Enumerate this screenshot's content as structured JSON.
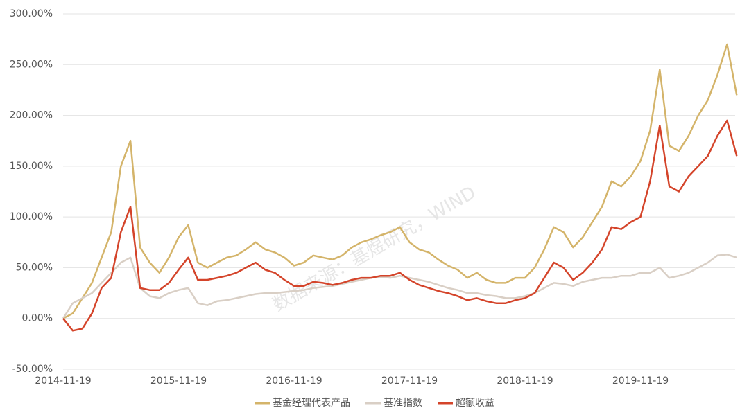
{
  "chart_data": {
    "type": "line",
    "watermark": "数据来源：基煜研究，WIND",
    "categories": [
      "2014-11-19",
      null,
      null,
      null,
      null,
      null,
      null,
      null,
      null,
      null,
      null,
      null,
      "2015-11-19",
      null,
      null,
      null,
      null,
      null,
      null,
      null,
      null,
      null,
      null,
      null,
      "2016-11-19",
      null,
      null,
      null,
      null,
      null,
      null,
      null,
      null,
      null,
      null,
      null,
      "2017-11-19",
      null,
      null,
      null,
      null,
      null,
      null,
      null,
      null,
      null,
      null,
      null,
      "2018-11-19",
      null,
      null,
      null,
      null,
      null,
      null,
      null,
      null,
      null,
      null,
      null,
      "2019-11-19",
      null,
      null,
      null,
      null,
      null,
      null,
      null,
      null,
      null,
      null
    ],
    "series": [
      {
        "name": "基金经理代表产品",
        "color": "#d4b46a",
        "values": [
          0,
          5,
          20,
          35,
          60,
          85,
          150,
          175,
          70,
          55,
          45,
          60,
          80,
          92,
          55,
          50,
          55,
          60,
          62,
          68,
          75,
          68,
          65,
          60,
          52,
          55,
          62,
          60,
          58,
          62,
          70,
          75,
          78,
          82,
          85,
          90,
          75,
          68,
          65,
          58,
          52,
          48,
          40,
          45,
          38,
          35,
          35,
          40,
          40,
          50,
          68,
          90,
          85,
          70,
          80,
          95,
          110,
          135,
          130,
          140,
          155,
          185,
          245,
          170,
          165,
          180,
          200,
          215,
          240,
          270,
          220
        ]
      },
      {
        "name": "基准指数",
        "color": "#d9cfc5",
        "values": [
          0,
          15,
          20,
          25,
          35,
          45,
          55,
          60,
          30,
          22,
          20,
          25,
          28,
          30,
          15,
          13,
          17,
          18,
          20,
          22,
          24,
          25,
          25,
          26,
          27,
          28,
          30,
          31,
          32,
          34,
          36,
          38,
          40,
          41,
          40,
          42,
          40,
          38,
          36,
          33,
          30,
          28,
          25,
          25,
          23,
          22,
          20,
          20,
          22,
          25,
          30,
          35,
          34,
          32,
          36,
          38,
          40,
          40,
          42,
          42,
          45,
          45,
          50,
          40,
          42,
          45,
          50,
          55,
          62,
          63,
          60
        ]
      },
      {
        "name": "超额收益",
        "color": "#d4442a",
        "values": [
          0,
          -12,
          -10,
          5,
          30,
          40,
          85,
          110,
          30,
          28,
          28,
          35,
          48,
          60,
          38,
          38,
          40,
          42,
          45,
          50,
          55,
          48,
          45,
          38,
          32,
          32,
          36,
          35,
          33,
          35,
          38,
          40,
          40,
          42,
          42,
          45,
          38,
          33,
          30,
          27,
          25,
          22,
          18,
          20,
          17,
          15,
          15,
          18,
          20,
          25,
          40,
          55,
          50,
          38,
          45,
          55,
          68,
          90,
          88,
          95,
          100,
          135,
          190,
          130,
          125,
          140,
          150,
          160,
          180,
          195,
          160
        ]
      }
    ],
    "ylim": [
      -50,
      300
    ],
    "yticks": [
      {
        "value": -50,
        "label": "-50.00%"
      },
      {
        "value": 0,
        "label": "0.00%"
      },
      {
        "value": 50,
        "label": "50.00%"
      },
      {
        "value": 100,
        "label": "100.00%"
      },
      {
        "value": 150,
        "label": "150.00%"
      },
      {
        "value": 200,
        "label": "200.00%"
      },
      {
        "value": 250,
        "label": "250.00%"
      },
      {
        "value": 300,
        "label": "300.00%"
      }
    ],
    "grid": true,
    "legend": "bottom"
  }
}
